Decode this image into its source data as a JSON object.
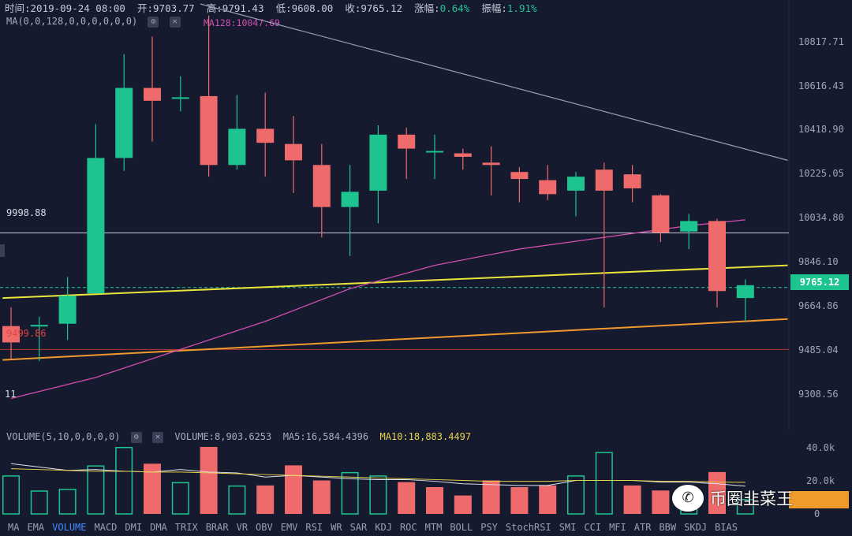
{
  "header": {
    "time_label": "时间:2019-09-24 08:00",
    "open_label": "开:9703.77",
    "high_label": "高:9791.43",
    "low_label": "低:9608.00",
    "close_label": "收:9765.12",
    "change_prefix": "涨幅:",
    "change_value": "0.64%",
    "amplitude_prefix": "振幅:",
    "amplitude_value": "1.91%"
  },
  "ma_indicator": {
    "label": "MA(0,0,128,0,0,0,0,0,0)",
    "value_label": "MA128:10047.69"
  },
  "price_axis": {
    "ticks": [
      "10817.71",
      "10616.43",
      "10418.90",
      "10225.05",
      "10034.80",
      "9846.10",
      "9664.86",
      "9485.04",
      "9308.56"
    ],
    "current_price": "9765.12"
  },
  "annotations": {
    "level_left": "9998.88",
    "red_left": "9499.86",
    "bottom_left": "11"
  },
  "volume_indicator": {
    "label": "VOLUME(5,10,0,0,0,0)",
    "volume_label": "VOLUME:8,903.6253",
    "ma5_label": "MA5:16,584.4396",
    "ma10_label": "MA10:18,883.4497",
    "ticks": [
      "40.0k",
      "20.0k",
      "0"
    ]
  },
  "tabs": [
    "MA",
    "EMA",
    "VOLUME",
    "MACD",
    "DMI",
    "DMA",
    "TRIX",
    "BRAR",
    "VR",
    "OBV",
    "EMV",
    "RSI",
    "WR",
    "SAR",
    "KDJ",
    "ROC",
    "MTM",
    "BOLL",
    "PSY",
    "StochRSI",
    "SMI",
    "CCI",
    "MFI",
    "ATR",
    "BBW",
    "SKDJ",
    "BIAS"
  ],
  "active_tab": "VOLUME",
  "watermark": {
    "icon": "wechat-icon",
    "text": "币圈韭菜王"
  },
  "colors": {
    "up": "#1ec48f",
    "down": "#ef6b6b",
    "ma128": "#d04fb0",
    "trend_yellow": "#e8e43a",
    "trend_orange": "#f09a2c"
  },
  "chart_data": {
    "type": "candlestick",
    "y_unit": "price",
    "ylim": [
      9200,
      10950
    ],
    "candles": [
      {
        "o": 9600,
        "h": 9680,
        "l": 9460,
        "c": 9530
      },
      {
        "o": 9600,
        "h": 9640,
        "l": 9450,
        "c": 9605
      },
      {
        "o": 9610,
        "h": 9810,
        "l": 9540,
        "c": 9730
      },
      {
        "o": 9740,
        "h": 10465,
        "l": 9740,
        "c": 10320
      },
      {
        "o": 10320,
        "h": 10765,
        "l": 10265,
        "c": 10620
      },
      {
        "o": 10620,
        "h": 10840,
        "l": 10390,
        "c": 10565
      },
      {
        "o": 10580,
        "h": 10670,
        "l": 10520,
        "c": 10580
      },
      {
        "o": 10585,
        "h": 10930,
        "l": 10240,
        "c": 10290
      },
      {
        "o": 10290,
        "h": 10590,
        "l": 10270,
        "c": 10445
      },
      {
        "o": 10445,
        "h": 10600,
        "l": 10240,
        "c": 10385
      },
      {
        "o": 10380,
        "h": 10500,
        "l": 10170,
        "c": 10310
      },
      {
        "o": 10290,
        "h": 10380,
        "l": 9980,
        "c": 10110
      },
      {
        "o": 10110,
        "h": 10290,
        "l": 9900,
        "c": 10175
      },
      {
        "o": 10180,
        "h": 10460,
        "l": 10040,
        "c": 10420
      },
      {
        "o": 10420,
        "h": 10450,
        "l": 10230,
        "c": 10360
      },
      {
        "o": 10350,
        "h": 10420,
        "l": 10230,
        "c": 10350
      },
      {
        "o": 10340,
        "h": 10360,
        "l": 10270,
        "c": 10325
      },
      {
        "o": 10300,
        "h": 10370,
        "l": 10160,
        "c": 10290
      },
      {
        "o": 10260,
        "h": 10280,
        "l": 10130,
        "c": 10230
      },
      {
        "o": 10225,
        "h": 10290,
        "l": 10140,
        "c": 10165
      },
      {
        "o": 10180,
        "h": 10260,
        "l": 10070,
        "c": 10240
      },
      {
        "o": 10270,
        "h": 10300,
        "l": 9680,
        "c": 10180
      },
      {
        "o": 10250,
        "h": 10290,
        "l": 10130,
        "c": 10190
      },
      {
        "o": 10160,
        "h": 10165,
        "l": 9960,
        "c": 10000
      },
      {
        "o": 10005,
        "h": 10080,
        "l": 9930,
        "c": 10050
      },
      {
        "o": 10050,
        "h": 10060,
        "l": 9680,
        "c": 9750
      },
      {
        "o": 9720,
        "h": 9800,
        "l": 9620,
        "c": 9775
      }
    ],
    "volume": {
      "ylim": [
        0,
        40000
      ],
      "values": [
        23000,
        14000,
        15000,
        29000,
        40000,
        30000,
        19000,
        40000,
        17000,
        17000,
        29000,
        20000,
        25000,
        23000,
        19000,
        16000,
        11000,
        20000,
        16000,
        17000,
        23000,
        37000,
        17000,
        14000,
        16000,
        25000,
        8900
      ],
      "direction": [
        "up",
        "up",
        "up",
        "up",
        "up",
        "down",
        "up",
        "down",
        "up",
        "down",
        "down",
        "down",
        "up",
        "up",
        "down",
        "down",
        "down",
        "down",
        "down",
        "down",
        "up",
        "up",
        "down",
        "down",
        "up",
        "down",
        "up"
      ],
      "ma5": [
        30000,
        28000,
        26000,
        26500,
        25500,
        25000,
        26500,
        25000,
        24500,
        22000,
        23000,
        22000,
        21000,
        20500,
        20500,
        19500,
        18000,
        17500,
        17000,
        17000,
        20000,
        20000,
        20000,
        19000,
        19000,
        18000,
        16584
      ],
      "ma10": [
        27000,
        26500,
        26000,
        25500,
        25500,
        25000,
        25000,
        24500,
        24000,
        23500,
        23000,
        22500,
        22000,
        21500,
        21000,
        20500,
        20000,
        19500,
        19500,
        19500,
        20000,
        20000,
        20000,
        19500,
        19500,
        19000,
        18883
      ]
    },
    "ma128": [
      {
        "i": 0,
        "v": 9290
      },
      {
        "i": 3,
        "v": 9380
      },
      {
        "i": 6,
        "v": 9500
      },
      {
        "i": 9,
        "v": 9620
      },
      {
        "i": 12,
        "v": 9760
      },
      {
        "i": 15,
        "v": 9860
      },
      {
        "i": 18,
        "v": 9930
      },
      {
        "i": 21,
        "v": 9980
      },
      {
        "i": 24,
        "v": 10030
      },
      {
        "i": 26,
        "v": 10055
      }
    ],
    "hlines": [
      {
        "v": 9998.88,
        "color": "#c8ccd6",
        "style": "solid"
      },
      {
        "v": 9499.86,
        "color": "#b23636",
        "style": "solid"
      },
      {
        "v": 9765.12,
        "color": "#1ec48f",
        "style": "dashed"
      }
    ],
    "trendlines": [
      {
        "from": {
          "i": -0.3,
          "v": 9720
        },
        "to": {
          "i": 27.5,
          "v": 9860
        },
        "color": "#e8e43a"
      },
      {
        "from": {
          "i": -0.3,
          "v": 9455
        },
        "to": {
          "i": 27.5,
          "v": 9630
        },
        "color": "#f09a2c"
      },
      {
        "from": {
          "i": 6.7,
          "v": 10980
        },
        "to": {
          "i": 27.5,
          "v": 10310
        },
        "color": "#9aa0b4"
      }
    ]
  }
}
